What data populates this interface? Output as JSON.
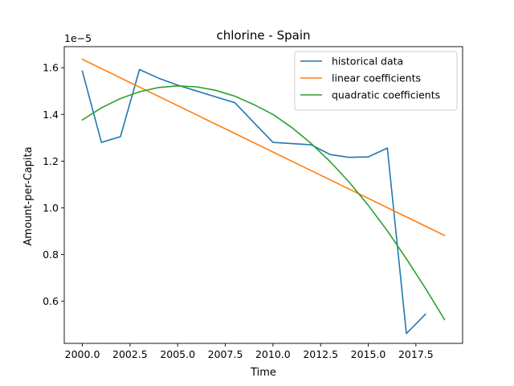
{
  "chart_data": {
    "type": "line",
    "title": "chlorine - Spain",
    "xlabel": "Time",
    "ylabel": "Amount-per-Capita",
    "y_offset_label": "1e−5",
    "xlim": [
      1999.05,
      2019.95
    ],
    "ylim": [
      0.42,
      1.69
    ],
    "x_ticks": [
      2000.0,
      2002.5,
      2005.0,
      2007.5,
      2010.0,
      2012.5,
      2015.0,
      2017.5
    ],
    "x_tick_labels": [
      "2000.0",
      "2002.5",
      "2005.0",
      "2007.5",
      "2010.0",
      "2012.5",
      "2015.0",
      "2017.5"
    ],
    "y_ticks": [
      0.6,
      0.8,
      1.0,
      1.2,
      1.4,
      1.6
    ],
    "y_tick_labels": [
      "0.6",
      "0.8",
      "1.0",
      "1.2",
      "1.4",
      "1.6"
    ],
    "grid": false,
    "legend_position": "top-right",
    "series": [
      {
        "name": "historical data",
        "color": "#1f77b4",
        "x": [
          2000,
          2001,
          2002,
          2003,
          2004,
          2005,
          2006,
          2007,
          2008,
          2009,
          2010,
          2011,
          2012,
          2013,
          2014,
          2015,
          2016,
          2017,
          2018
        ],
        "y": [
          1.585,
          1.28,
          1.305,
          1.592,
          1.555,
          1.525,
          1.5,
          1.475,
          1.45,
          1.365,
          1.28,
          1.275,
          1.27,
          1.228,
          1.216,
          1.218,
          1.256,
          0.462,
          0.545
        ]
      },
      {
        "name": "linear coefficients",
        "color": "#ff7f0e",
        "x": [
          2000,
          2019
        ],
        "y": [
          1.636,
          0.882
        ]
      },
      {
        "name": "quadratic coefficients",
        "color": "#2ca02c",
        "x": [
          2000,
          2001,
          2002,
          2003,
          2004,
          2005,
          2006,
          2007,
          2008,
          2009,
          2010,
          2011,
          2012,
          2013,
          2014,
          2015,
          2016,
          2017,
          2018,
          2019
        ],
        "y": [
          1.376,
          1.428,
          1.468,
          1.497,
          1.515,
          1.522,
          1.518,
          1.503,
          1.478,
          1.442,
          1.4,
          1.343,
          1.276,
          1.198,
          1.11,
          1.011,
          0.902,
          0.782,
          0.656,
          0.522
        ]
      }
    ]
  }
}
